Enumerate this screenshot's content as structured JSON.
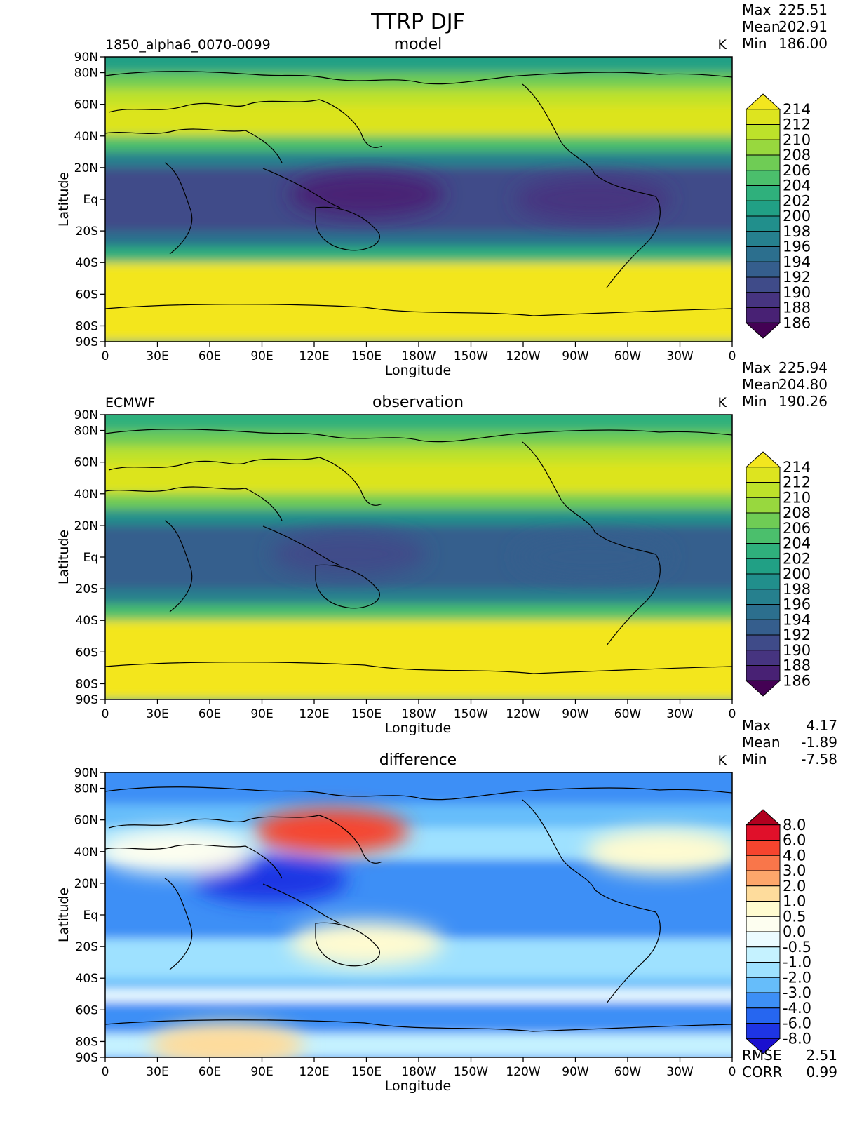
{
  "chart_data": {
    "title": "TTRP DJF",
    "x_ticks": [
      "0",
      "30E",
      "60E",
      "90E",
      "120E",
      "150E",
      "180W",
      "150W",
      "120W",
      "90W",
      "60W",
      "30W",
      "0"
    ],
    "y_ticks": [
      "90N",
      "80N",
      "60N",
      "40N",
      "20N",
      "Eq",
      "20S",
      "40S",
      "60S",
      "80S",
      "90S"
    ],
    "y_tick_values": [
      90,
      80,
      60,
      40,
      20,
      0,
      -20,
      -40,
      -60,
      -80,
      -90
    ],
    "xlabel": "Longitude",
    "ylabel": "Latitude",
    "panels": [
      {
        "type": "heatmap",
        "name": "model",
        "left_label": "1850_alpha6_0070-0099",
        "center_label": "model",
        "units": "K",
        "stats": [
          {
            "label": "Max",
            "value": "225.51"
          },
          {
            "label": "Mean",
            "value": "202.91"
          },
          {
            "label": "Min",
            "value": "186.00"
          }
        ],
        "colorbar": {
          "labels": [
            "214",
            "212",
            "210",
            "208",
            "206",
            "204",
            "202",
            "200",
            "198",
            "196",
            "194",
            "192",
            "190",
            "188",
            "186"
          ],
          "colors": [
            "#f3e61f",
            "#dde41f",
            "#bde22a",
            "#98d83e",
            "#6fcc55",
            "#4bbf6c",
            "#2fb07c",
            "#21a085",
            "#218f8c",
            "#26808e",
            "#2c6f8e",
            "#355e8d",
            "#3f4b89",
            "#463480",
            "#482174",
            "#440154"
          ]
        },
        "bands": [
          {
            "lat": [
              90,
              80
            ],
            "value": 200
          },
          {
            "lat": [
              80,
              70
            ],
            "value": 206
          },
          {
            "lat": [
              70,
              60
            ],
            "value": 210
          },
          {
            "lat": [
              60,
              50
            ],
            "value": 213
          },
          {
            "lat": [
              50,
              40
            ],
            "value": 212
          },
          {
            "lat": [
              40,
              30
            ],
            "value": 204
          },
          {
            "lat": [
              30,
              20
            ],
            "value": 196
          },
          {
            "lat": [
              20,
              -20
            ],
            "value": 191
          },
          {
            "lat": [
              -20,
              -30
            ],
            "value": 195
          },
          {
            "lat": [
              -30,
              -40
            ],
            "value": 203
          },
          {
            "lat": [
              -40,
              -90
            ],
            "value": 215
          }
        ],
        "blobs": [
          {
            "lon": 150,
            "lat": 3,
            "value": 187
          },
          {
            "lon": -80,
            "lat": 0,
            "value": 189
          }
        ]
      },
      {
        "type": "heatmap",
        "name": "observation",
        "left_label": "ECMWF",
        "center_label": "observation",
        "units": "K",
        "stats": [
          {
            "label": "Max",
            "value": "225.94"
          },
          {
            "label": "Mean",
            "value": "204.80"
          },
          {
            "label": "Min",
            "value": "190.26"
          }
        ],
        "colorbar": {
          "labels": [
            "214",
            "212",
            "210",
            "208",
            "206",
            "204",
            "202",
            "200",
            "198",
            "196",
            "194",
            "192",
            "190",
            "188",
            "186"
          ],
          "colors": [
            "#f3e61f",
            "#dde41f",
            "#bde22a",
            "#98d83e",
            "#6fcc55",
            "#4bbf6c",
            "#2fb07c",
            "#21a085",
            "#218f8c",
            "#26808e",
            "#2c6f8e",
            "#355e8d",
            "#3f4b89",
            "#463480",
            "#482174",
            "#440154"
          ]
        },
        "bands": [
          {
            "lat": [
              90,
              80
            ],
            "value": 203
          },
          {
            "lat": [
              80,
              70
            ],
            "value": 207
          },
          {
            "lat": [
              70,
              60
            ],
            "value": 210
          },
          {
            "lat": [
              60,
              50
            ],
            "value": 212
          },
          {
            "lat": [
              50,
              40
            ],
            "value": 212
          },
          {
            "lat": [
              40,
              30
            ],
            "value": 206
          },
          {
            "lat": [
              30,
              20
            ],
            "value": 199
          },
          {
            "lat": [
              20,
              -20
            ],
            "value": 193
          },
          {
            "lat": [
              -20,
              -30
            ],
            "value": 197
          },
          {
            "lat": [
              -30,
              -40
            ],
            "value": 205
          },
          {
            "lat": [
              -40,
              -90
            ],
            "value": 215
          }
        ],
        "blobs": [
          {
            "lon": 140,
            "lat": 2,
            "value": 191
          },
          {
            "lon": -80,
            "lat": 0,
            "value": 192
          }
        ]
      },
      {
        "type": "heatmap",
        "name": "difference",
        "left_label": "",
        "center_label": "difference",
        "units": "K",
        "stats": [
          {
            "label": "Max",
            "value": "4.17"
          },
          {
            "label": "Mean",
            "value": "-1.89"
          },
          {
            "label": "Min",
            "value": "-7.58"
          }
        ],
        "colorbar": {
          "labels": [
            "8.0",
            "6.0",
            "4.0",
            "3.0",
            "2.0",
            "1.0",
            "0.5",
            "0.0",
            "-0.5",
            "-1.0",
            "-2.0",
            "-3.0",
            "-4.0",
            "-6.0",
            "-8.0"
          ],
          "colors": [
            "#b1001f",
            "#e0102a",
            "#f6442e",
            "#f9764a",
            "#fda66b",
            "#fedc9c",
            "#fffbd0",
            "#fdfef0",
            "#ebfbff",
            "#c5f2ff",
            "#9ee1ff",
            "#66bdfa",
            "#3d8ff6",
            "#2666f0",
            "#1e35e4",
            "#1a10cf"
          ]
        },
        "bands": [
          {
            "lat": [
              90,
              85
            ],
            "value": -3.5
          },
          {
            "lat": [
              85,
              70
            ],
            "value": -3.5
          },
          {
            "lat": [
              70,
              55
            ],
            "value": -2.5
          },
          {
            "lat": [
              55,
              35
            ],
            "value": -1.5
          },
          {
            "lat": [
              35,
              -15
            ],
            "value": -3.2
          },
          {
            "lat": [
              -15,
              -40
            ],
            "value": -1.5
          },
          {
            "lat": [
              -40,
              -47
            ],
            "value": -2.5
          },
          {
            "lat": [
              -47,
              -55
            ],
            "value": -0.3
          },
          {
            "lat": [
              -55,
              -75
            ],
            "value": -3.5
          },
          {
            "lat": [
              -75,
              -90
            ],
            "value": -0.8
          }
        ],
        "blobs": [
          {
            "lon": 130,
            "lat": 53,
            "value": 4.0
          },
          {
            "lon": 95,
            "lat": 22,
            "value": -6.5
          },
          {
            "lon": 150,
            "lat": -18,
            "value": 0.6
          },
          {
            "lon": 40,
            "lat": 40,
            "value": 0.4
          },
          {
            "lon": -40,
            "lat": 40,
            "value": 0.5
          },
          {
            "lon": 70,
            "lat": -82,
            "value": 1.0
          }
        ]
      }
    ],
    "rmse": {
      "label": "RMSE",
      "value": "2.51"
    },
    "corr": {
      "label": "CORR",
      "value": "0.99"
    }
  }
}
